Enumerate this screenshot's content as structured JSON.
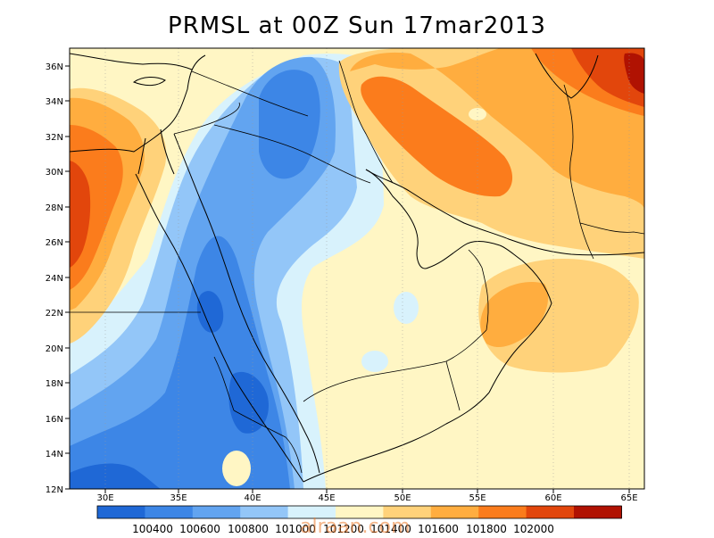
{
  "title": "PRMSL at 00Z Sun 17mar2013",
  "x_ticks": [
    "30E",
    "35E",
    "40E",
    "45E",
    "50E",
    "55E",
    "60E",
    "65E"
  ],
  "y_ticks": [
    "36N",
    "34N",
    "32N",
    "30N",
    "28N",
    "26N",
    "24N",
    "22N",
    "20N",
    "18N",
    "16N",
    "14N",
    "12N"
  ],
  "colorbar": {
    "colors": [
      "#1f68d6",
      "#3d86e6",
      "#62a4f0",
      "#93c6f8",
      "#d8f2fc",
      "#fff6c4",
      "#ffd27a",
      "#ffad3f",
      "#fb7c1c",
      "#e2460c",
      "#b01202"
    ],
    "labels": [
      "100400",
      "100600",
      "100800",
      "101000",
      "101200",
      "101400",
      "101600",
      "101800",
      "102000"
    ]
  },
  "watermark": "alraan.com",
  "palette": {
    "ocean": "#fff6c4",
    "border": "#000000"
  }
}
